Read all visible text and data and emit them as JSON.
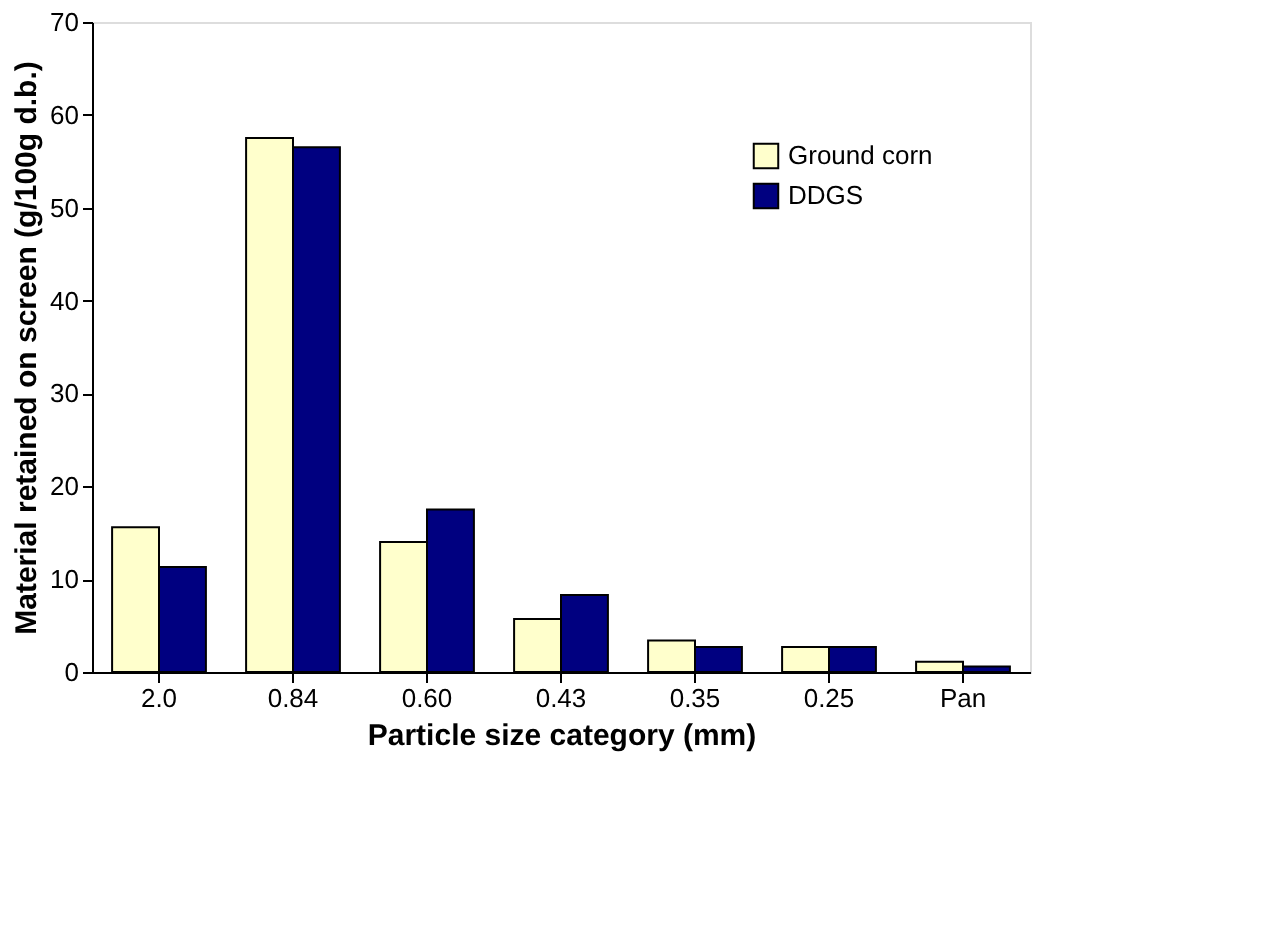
{
  "chart_data": {
    "type": "bar",
    "xlabel": "Particle size category (mm)",
    "ylabel": "Material retained on screen (g/100g d.b.)",
    "categories": [
      "2.0",
      "0.84",
      "0.60",
      "0.43",
      "0.35",
      "0.25",
      "Pan"
    ],
    "series": [
      {
        "name": "Ground corn",
        "color": "#ffffcc",
        "values": [
          15.6,
          57.5,
          14.0,
          5.7,
          3.4,
          2.7,
          1.1
        ]
      },
      {
        "name": "DDGS",
        "color": "#000080",
        "values": [
          11.3,
          56.5,
          17.5,
          8.3,
          2.7,
          2.7,
          0.6
        ]
      }
    ],
    "ylim": [
      0,
      70
    ],
    "yticks": [
      0,
      10,
      20,
      30,
      40,
      50,
      60,
      70
    ],
    "grid": false,
    "legend": "top right"
  }
}
